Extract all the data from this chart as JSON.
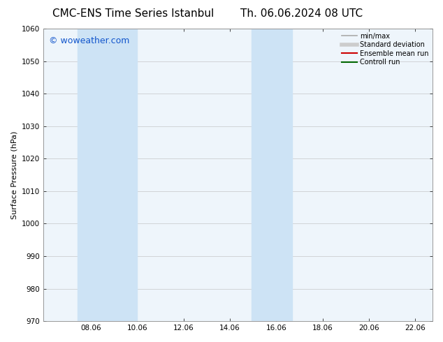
{
  "title_left": "CMC-ENS Time Series Istanbul",
  "title_right": "Th. 06.06.2024 08 UTC",
  "ylabel": "Surface Pressure (hPa)",
  "ylim": [
    970,
    1060
  ],
  "yticks": [
    970,
    980,
    990,
    1000,
    1010,
    1020,
    1030,
    1040,
    1050,
    1060
  ],
  "xlim_start": 6.0,
  "xlim_end": 22.8,
  "xticks": [
    8.06,
    10.06,
    12.06,
    14.06,
    16.06,
    18.06,
    20.06,
    22.06
  ],
  "xtick_labels": [
    "08.06",
    "10.06",
    "12.06",
    "14.06",
    "16.06",
    "18.06",
    "20.06",
    "22.06"
  ],
  "shaded_bands": [
    {
      "x_start": 7.5,
      "x_end": 10.06
    },
    {
      "x_start": 15.0,
      "x_end": 16.75
    }
  ],
  "background_color": "#ffffff",
  "plot_bg_color": "#eef5fb",
  "shade_color": "#cde3f5",
  "watermark_text": "© woweather.com",
  "watermark_color": "#1155cc",
  "legend_entries": [
    {
      "label": "min/max",
      "color": "#aaaaaa",
      "linewidth": 1.2
    },
    {
      "label": "Standard deviation",
      "color": "#cccccc",
      "linewidth": 4
    },
    {
      "label": "Ensemble mean run",
      "color": "#cc0000",
      "linewidth": 1.5
    },
    {
      "label": "Controll run",
      "color": "#006600",
      "linewidth": 1.5
    }
  ],
  "title_fontsize": 11,
  "ylabel_fontsize": 8,
  "tick_fontsize": 7.5,
  "watermark_fontsize": 9,
  "legend_fontsize": 7
}
